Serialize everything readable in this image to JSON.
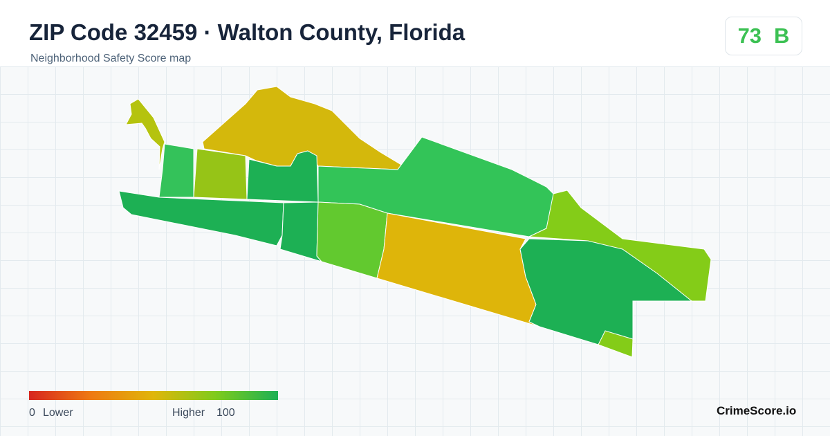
{
  "header": {
    "title": "ZIP Code 32459 · Walton County, Florida",
    "subtitle": "Neighborhood Safety Score map"
  },
  "badge": {
    "score": 73,
    "grade": "B"
  },
  "legend": {
    "min": 0,
    "min_label": "Lower",
    "max_label": "Higher",
    "max": 100
  },
  "brand": "CrimeScore.io"
}
